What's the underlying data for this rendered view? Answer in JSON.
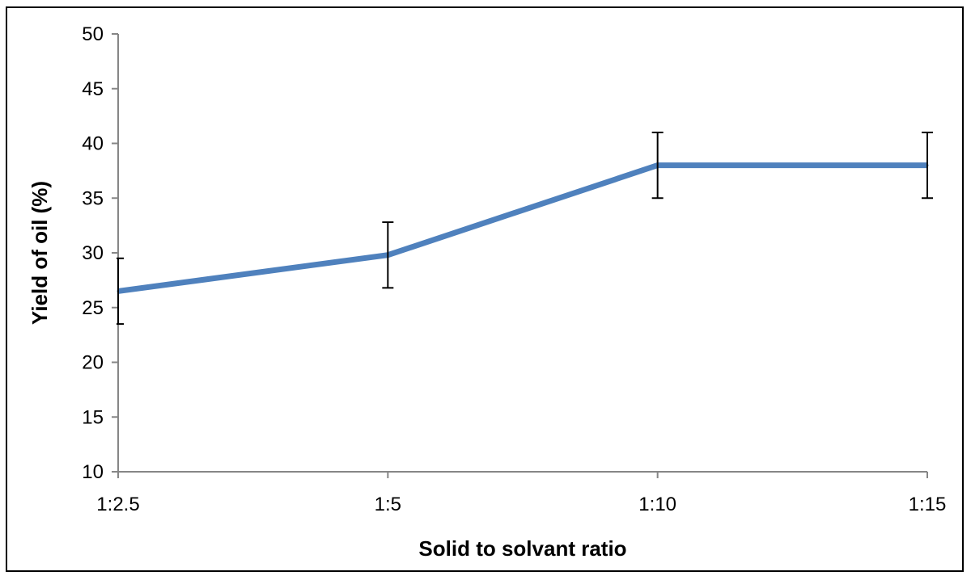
{
  "chart_data": {
    "type": "line",
    "categories": [
      "1:2.5",
      "1:5",
      "1:10",
      "1:15"
    ],
    "series": [
      {
        "values": [
          26.5,
          29.8,
          38.0,
          38.0
        ],
        "error": [
          3.0,
          3.0,
          3.0,
          3.0
        ],
        "color": "#4F81BD"
      }
    ],
    "xlabel": "Solid to solvant ratio",
    "ylabel": "Yield of oil (%)",
    "ylim": [
      10,
      50
    ],
    "yticks": [
      "10",
      "15",
      "20",
      "25",
      "30",
      "35",
      "40",
      "45",
      "50"
    ],
    "grid": false,
    "legend": "none"
  }
}
